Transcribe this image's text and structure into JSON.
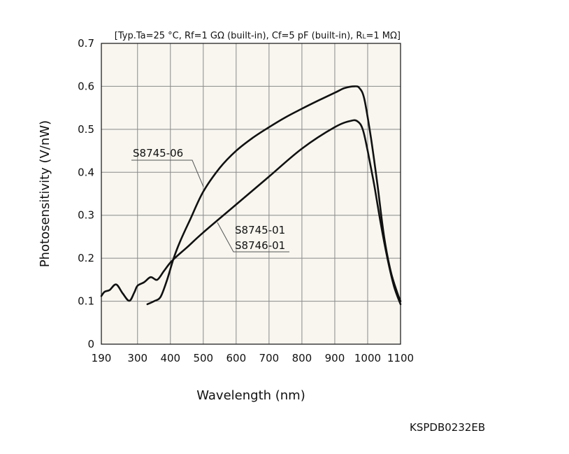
{
  "chart_data": {
    "type": "line",
    "conditions": "[Typ.Ta=25 °C, Rf=1 GΩ (built-in), Cf=5 pF (built-in), RL=1 MΩ]",
    "conditions_parts": {
      "before_sub": "[Typ.Ta=25 °C, Rf=1 GΩ (built-in), Cf=5 pF (built-in), R",
      "sub": "L",
      "after_sub": "=1 MΩ]"
    },
    "xlabel": "Wavelength (nm)",
    "ylabel": "Photosensitivity (V/nW)",
    "xlim": [
      190,
      1100
    ],
    "ylim": [
      0,
      0.7
    ],
    "x_ticks": [
      190,
      300,
      400,
      500,
      600,
      700,
      800,
      900,
      1000,
      1100
    ],
    "y_ticks": [
      0,
      0.1,
      0.2,
      0.3,
      0.4,
      0.5,
      0.6,
      0.7
    ],
    "x_tick_labels": [
      "190",
      "300",
      "400",
      "500",
      "600",
      "700",
      "800",
      "900",
      "1000",
      "1100"
    ],
    "y_tick_labels": [
      "0",
      "0.1",
      "0.2",
      "0.3",
      "0.4",
      "0.5",
      "0.6",
      "0.7"
    ],
    "grid": true,
    "series": [
      {
        "name": "S8745-06",
        "x": [
          330,
          350,
          370,
          390,
          410,
          430,
          460,
          500,
          550,
          600,
          650,
          700,
          750,
          800,
          850,
          900,
          930,
          960,
          975,
          990,
          1010,
          1030,
          1050,
          1070,
          1090,
          1100
        ],
        "y": [
          0.093,
          0.1,
          0.11,
          0.15,
          0.2,
          0.24,
          0.29,
          0.355,
          0.41,
          0.45,
          0.48,
          0.505,
          0.528,
          0.548,
          0.567,
          0.585,
          0.596,
          0.6,
          0.596,
          0.57,
          0.48,
          0.37,
          0.25,
          0.17,
          0.12,
          0.1
        ]
      },
      {
        "name": "S8745-01 / S8746-01",
        "x": [
          190,
          200,
          215,
          235,
          255,
          275,
          290,
          300,
          320,
          340,
          360,
          380,
          400,
          420,
          450,
          500,
          600,
          700,
          800,
          900,
          950,
          970,
          985,
          1000,
          1020,
          1040,
          1060,
          1080,
          1100
        ],
        "y": [
          0.112,
          0.122,
          0.126,
          0.139,
          0.118,
          0.101,
          0.12,
          0.136,
          0.144,
          0.156,
          0.15,
          0.17,
          0.19,
          0.205,
          0.225,
          0.26,
          0.325,
          0.39,
          0.455,
          0.505,
          0.52,
          0.518,
          0.5,
          0.45,
          0.37,
          0.28,
          0.2,
          0.135,
          0.093
        ]
      }
    ],
    "annotations": [
      {
        "text": "S8745-06"
      },
      {
        "text": "S8745-01"
      },
      {
        "text": "S8746-01"
      }
    ]
  },
  "footer": {
    "code": "KSPDB0232EB"
  }
}
